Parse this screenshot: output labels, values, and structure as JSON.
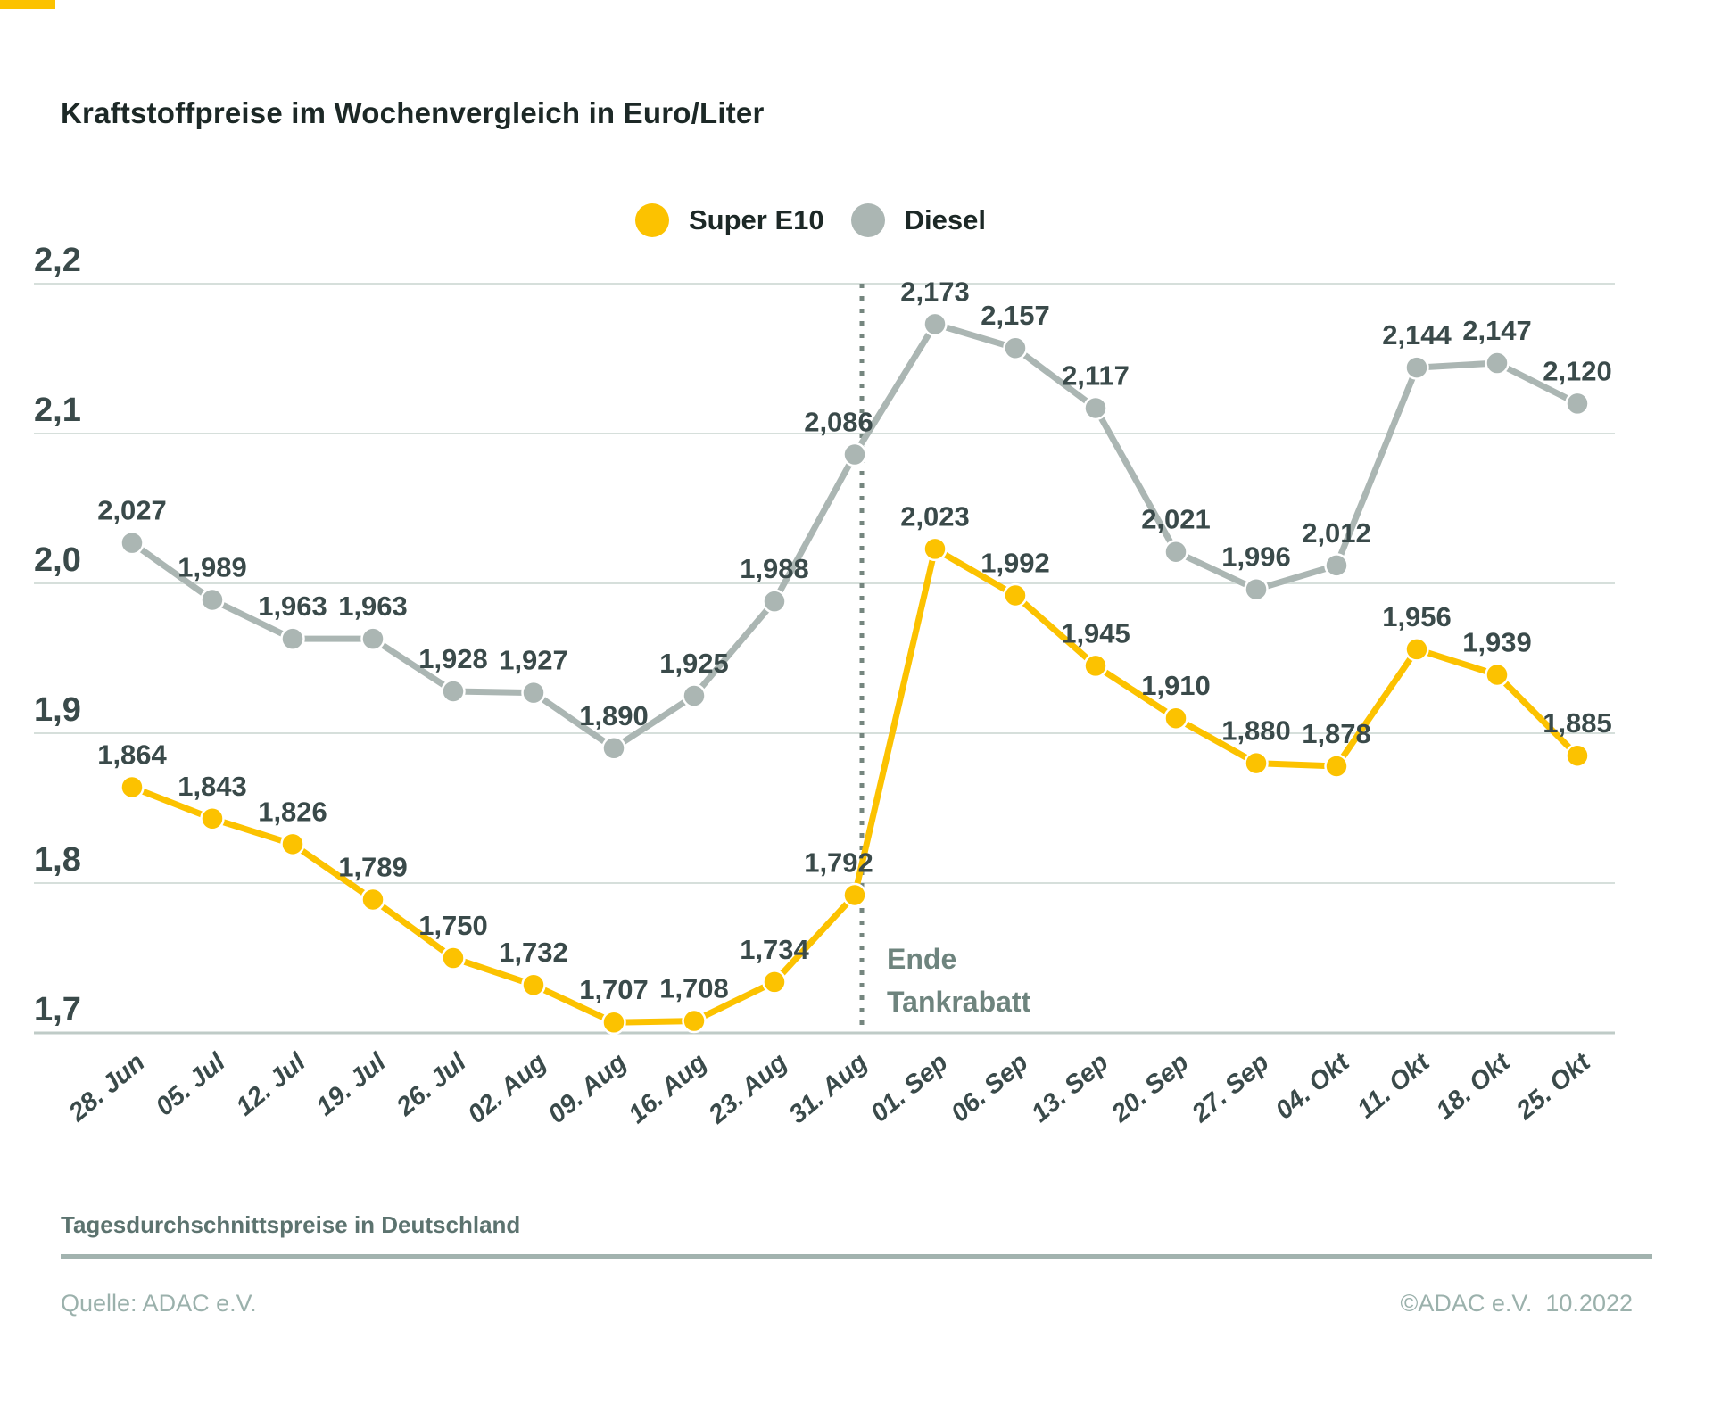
{
  "title": "Kraftstoffpreise im Wochenvergleich in Euro/Liter",
  "legend": {
    "items": [
      {
        "label": "Super E10",
        "color": "#FCC200"
      },
      {
        "label": "Diesel",
        "color": "#ABB6B3"
      }
    ]
  },
  "annotation": {
    "line1": "Ende",
    "line2": "Tankrabatt"
  },
  "footer": {
    "subtitle": "Tagesdurchschnittspreise in Deutschland",
    "source": "Quelle: ADAC e.V.",
    "copyright": "©ADAC e.V.  10.2022"
  },
  "colors": {
    "super_e10": "#FCC200",
    "diesel": "#ABB6B3",
    "grid": "#D6DFDB",
    "axis": "#BFCBC7",
    "tick_label": "#3A4A4A",
    "value_label": "#3A4A4A",
    "annotation": "#6E847E",
    "divider_dotted": "#75867F",
    "title": "#1C2826"
  },
  "chart_data": {
    "type": "line",
    "title": "Kraftstoffpreise im Wochenvergleich in Euro/Liter",
    "categories": [
      "28. Jun",
      "05. Jul",
      "12. Jul",
      "19. Jul",
      "26. Jul",
      "02. Aug",
      "09. Aug",
      "16. Aug",
      "23. Aug",
      "31. Aug",
      "01. Sep",
      "06. Sep",
      "13. Sep",
      "20. Sep",
      "27. Sep",
      "04. Okt",
      "11. Okt",
      "18. Okt",
      "25. Okt"
    ],
    "series": [
      {
        "name": "Diesel",
        "color": "#ABB6B3",
        "values": [
          2.027,
          1.989,
          1.963,
          1.963,
          1.928,
          1.927,
          1.89,
          1.925,
          1.988,
          2.086,
          2.173,
          2.157,
          2.117,
          2.021,
          1.996,
          2.012,
          2.144,
          2.147,
          2.12
        ]
      },
      {
        "name": "Super E10",
        "color": "#FCC200",
        "values": [
          1.864,
          1.843,
          1.826,
          1.789,
          1.75,
          1.732,
          1.707,
          1.708,
          1.734,
          1.792,
          2.023,
          1.992,
          1.945,
          1.91,
          1.88,
          1.878,
          1.956,
          1.939,
          1.885
        ]
      }
    ],
    "ylim": [
      1.7,
      2.2
    ],
    "yticks": [
      2.2,
      2.1,
      2.0,
      1.9,
      1.8,
      1.7
    ],
    "grid": true,
    "value_labels": true,
    "decimal_separator": ",",
    "legend_position": "top",
    "annotation_text": "Ende Tankrabatt",
    "annotation_after_category": "31. Aug"
  }
}
